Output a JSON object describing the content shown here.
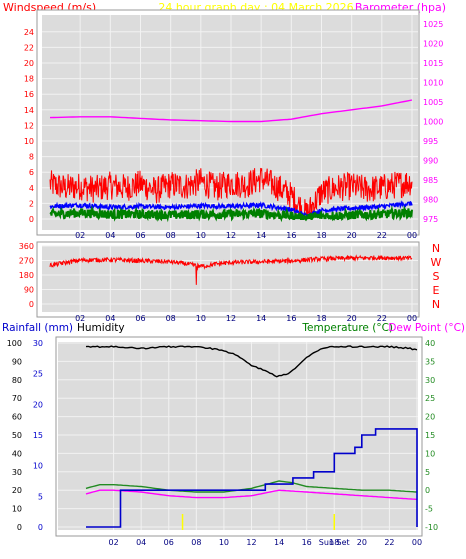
{
  "header": {
    "left": "Windspeed (m/s)",
    "center": "24 hour graph day : 04 March 2026",
    "right": "Barometer (hpa)"
  },
  "colors": {
    "wind": "#ff0000",
    "barometer": "#ff00ff",
    "gust": "#ff0000",
    "avgwind": "#0000ff",
    "speed": "#008000",
    "direction": "#ff0000",
    "humidity": "#000000",
    "temperature": "#228b22",
    "dewpoint": "#ff00ff",
    "rainfall": "#0000cc",
    "marker": "#ffff00",
    "plot_bg": "#dcdcdc",
    "grid": "#f2f2f2"
  },
  "chart_data": [
    {
      "type": "line",
      "name": "wind-barometer",
      "x_ticks": [
        "02",
        "04",
        "06",
        "08",
        "10",
        "12",
        "14",
        "16",
        "18",
        "20",
        "22",
        "00"
      ],
      "left_axis": {
        "label": "Windspeed (m/s)",
        "ticks": [
          "0",
          "2",
          "4",
          "6",
          "8",
          "10",
          "12",
          "14",
          "16",
          "18",
          "20",
          "22",
          "24"
        ],
        "ylim": [
          0,
          25
        ]
      },
      "right_axis": {
        "label": "Barometer (hpa)",
        "ticks": [
          "975",
          "980",
          "985",
          "990",
          "995",
          "1000",
          "1005",
          "1010",
          "1015",
          "1020",
          "1025"
        ],
        "ylim": [
          973,
          1026
        ]
      },
      "series": [
        {
          "role": "barometer",
          "axis": "right",
          "x": [
            0,
            2,
            4,
            6,
            8,
            10,
            12,
            14,
            16,
            17,
            18,
            20,
            22,
            24
          ],
          "values": [
            1001.0,
            1001.2,
            1001.2,
            1000.8,
            1000.4,
            1000.2,
            1000.0,
            1000.0,
            1000.6,
            1001.3,
            1002.0,
            1003.0,
            1004.0,
            1005.5
          ]
        },
        {
          "role": "gust",
          "axis": "left",
          "x": [
            0,
            1,
            2,
            3,
            4,
            5,
            6,
            7,
            8,
            9,
            10,
            11,
            12,
            13,
            14,
            15,
            16,
            16.5,
            17,
            17.5,
            18,
            19,
            20,
            21,
            22,
            23,
            24
          ],
          "values": [
            4.5,
            4.0,
            4.2,
            3.8,
            4.3,
            4.0,
            4.5,
            3.6,
            4.4,
            4.2,
            4.8,
            4.0,
            4.6,
            4.4,
            5.2,
            4.2,
            3.0,
            1.8,
            0.6,
            2.0,
            3.4,
            4.0,
            4.2,
            3.8,
            4.0,
            4.4,
            4.8
          ],
          "jitter": 1.8
        },
        {
          "role": "avgwind",
          "axis": "left",
          "x": [
            0,
            2,
            4,
            6,
            8,
            10,
            12,
            14,
            16,
            17,
            18,
            20,
            22,
            24
          ],
          "values": [
            1.6,
            1.8,
            1.5,
            1.6,
            1.5,
            1.7,
            1.6,
            1.8,
            1.2,
            0.4,
            1.1,
            1.4,
            1.6,
            2.0
          ],
          "jitter": 0.3
        },
        {
          "role": "speed",
          "axis": "left",
          "x": [
            0,
            2,
            4,
            6,
            8,
            10,
            12,
            14,
            16,
            17,
            18,
            20,
            22,
            24
          ],
          "values": [
            0.6,
            0.8,
            0.6,
            0.6,
            0.5,
            0.6,
            0.6,
            0.7,
            0.4,
            0.1,
            0.4,
            0.5,
            0.6,
            0.8
          ],
          "jitter": 0.6
        }
      ]
    },
    {
      "type": "line",
      "name": "wind-direction",
      "x_ticks": [
        "02",
        "04",
        "06",
        "08",
        "10",
        "12",
        "14",
        "16",
        "18",
        "20",
        "22",
        "00"
      ],
      "left_axis": {
        "ticks": [
          "0",
          "90",
          "180",
          "270",
          "360"
        ],
        "ylim": [
          0,
          360
        ]
      },
      "right_axis": {
        "ticks": [
          "N",
          "W",
          "S",
          "E",
          "N"
        ]
      },
      "series": [
        {
          "role": "direction",
          "axis": "left",
          "x": [
            0,
            2,
            4,
            6,
            8,
            9,
            10,
            11,
            12,
            14,
            16,
            18,
            20,
            22,
            24
          ],
          "values": [
            240,
            272,
            275,
            268,
            262,
            250,
            232,
            248,
            258,
            262,
            268,
            280,
            285,
            288,
            283
          ],
          "jitter": 14
        }
      ]
    },
    {
      "type": "line",
      "name": "rain-humidity-temperature",
      "x_ticks": [
        "02",
        "04",
        "06",
        "08",
        "10",
        "12",
        "14",
        "16",
        "18",
        "20",
        "22",
        "00"
      ],
      "left_axis": {
        "label": "Rainfall (mm)",
        "ticks": [
          "0",
          "5",
          "10",
          "15",
          "20",
          "25",
          "30"
        ],
        "ylim": [
          0,
          30
        ]
      },
      "left_axis2": {
        "label": "Humidity",
        "ticks": [
          "0",
          "10",
          "20",
          "30",
          "40",
          "50",
          "60",
          "70",
          "80",
          "90",
          "100"
        ],
        "ylim": [
          0,
          100
        ]
      },
      "right_axis": {
        "label": "Temperature (°C)",
        "label2": "Dew Point (°C)",
        "ticks": [
          "-10",
          "-5",
          "0",
          "5",
          "10",
          "15",
          "20",
          "25",
          "30",
          "35",
          "40"
        ],
        "ylim": [
          -10,
          40
        ]
      },
      "series": [
        {
          "role": "humidity",
          "axis": "left2",
          "x": [
            0,
            2,
            4,
            6,
            8,
            10,
            11,
            12,
            13,
            13.8,
            14.5,
            15,
            16,
            17,
            18,
            20,
            22,
            23.5,
            24
          ],
          "values": [
            98,
            98,
            97,
            98,
            98,
            96,
            93,
            88,
            85,
            82,
            83,
            85,
            92,
            97,
            98,
            98,
            98,
            97,
            96
          ]
        },
        {
          "role": "temperature",
          "axis": "right",
          "x": [
            0,
            1,
            2,
            4,
            6,
            8,
            10,
            12,
            13,
            14,
            15,
            16,
            18,
            20,
            22,
            24
          ],
          "values": [
            0.5,
            1.5,
            1.5,
            1.0,
            0.0,
            -0.5,
            -0.5,
            0.5,
            1.5,
            2.5,
            2.0,
            1.0,
            0.5,
            0.0,
            0.0,
            -0.5
          ]
        },
        {
          "role": "dewpoint",
          "axis": "right",
          "x": [
            0,
            1,
            2,
            4,
            6,
            8,
            10,
            12,
            14,
            16,
            18,
            20,
            22,
            24
          ],
          "values": [
            -1.0,
            0.0,
            0.0,
            -0.5,
            -1.5,
            -2.0,
            -2.0,
            -1.5,
            0.0,
            -0.5,
            -1.0,
            -1.5,
            -2.0,
            -2.5
          ]
        },
        {
          "role": "rainfall",
          "axis": "left",
          "step": true,
          "x": [
            0,
            2.4,
            2.5,
            12.5,
            13,
            15,
            16.5,
            18,
            19.5,
            20,
            21,
            22,
            23.8,
            24
          ],
          "values": [
            0,
            0,
            6,
            6,
            7,
            8,
            9,
            12,
            13,
            15,
            16,
            16,
            16,
            0
          ]
        }
      ],
      "markers": [
        {
          "x": 7,
          "label": ""
        },
        {
          "x": 18,
          "label": "Sun Set"
        }
      ]
    }
  ]
}
